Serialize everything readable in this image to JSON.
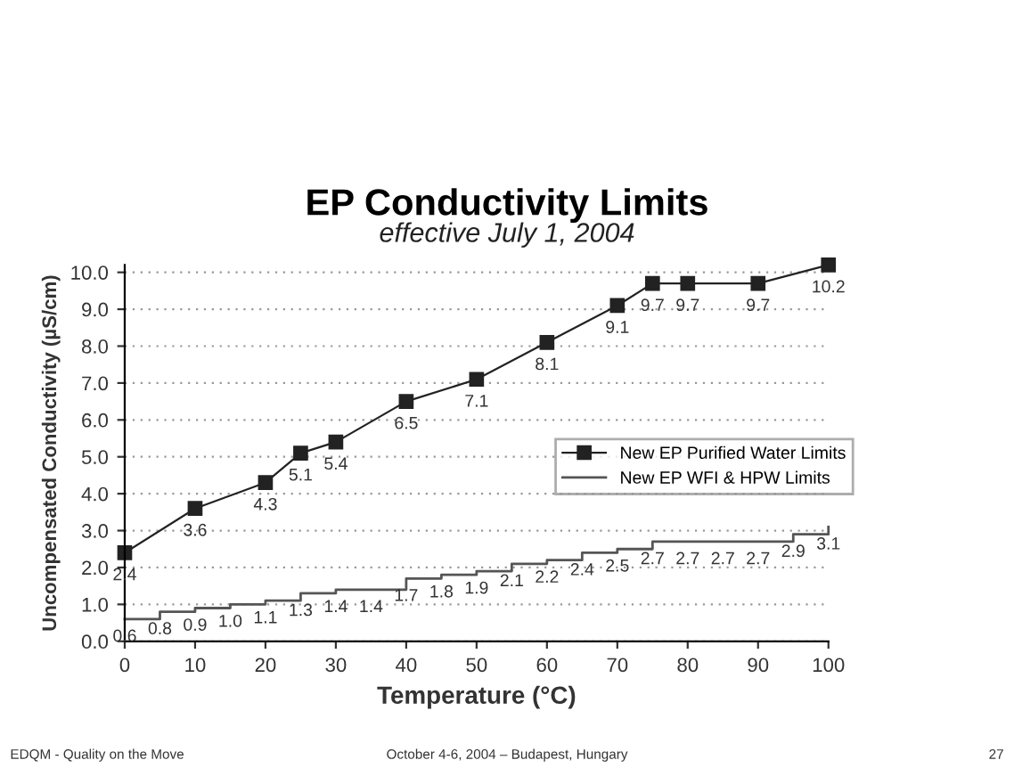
{
  "chart_data": {
    "type": "line",
    "title": "EP Conductivity Limits",
    "subtitle": "effective July 1, 2004",
    "xlabel": "Temperature (°C)",
    "ylabel": "Uncompensated Conductivity (µS/cm)",
    "xlim": [
      0,
      100
    ],
    "xticks": [
      0,
      10,
      20,
      30,
      40,
      50,
      60,
      70,
      80,
      90,
      100
    ],
    "ylim": [
      0,
      10.2
    ],
    "yticks": [
      {
        "value": 0,
        "label": "0.0"
      },
      {
        "value": 1,
        "label": "1.0"
      },
      {
        "value": 2,
        "label": "2.0"
      },
      {
        "value": 3,
        "label": "3.0"
      },
      {
        "value": 4,
        "label": "4.0"
      },
      {
        "value": 5,
        "label": "5.0"
      },
      {
        "value": 6,
        "label": "6.0"
      },
      {
        "value": 7,
        "label": "7.0"
      },
      {
        "value": 8,
        "label": "8.0"
      },
      {
        "value": 9,
        "label": "9.0"
      },
      {
        "value": 10,
        "label": "10.0"
      }
    ],
    "grid": "y",
    "legend": "right",
    "data_labels": true,
    "series": [
      {
        "name": "New EP Purified Water Limits",
        "marker": "square",
        "color": "#222222",
        "x": [
          0,
          10,
          20,
          25,
          30,
          40,
          50,
          60,
          70,
          75,
          80,
          90,
          100
        ],
        "values": [
          2.4,
          3.6,
          4.3,
          5.1,
          5.4,
          6.5,
          7.1,
          8.1,
          9.1,
          9.7,
          9.7,
          9.7,
          10.2
        ]
      },
      {
        "name": "New EP WFI & HPW Limits",
        "type": "step",
        "marker": "none",
        "color": "#555555",
        "x": [
          0,
          5,
          10,
          15,
          20,
          25,
          30,
          35,
          40,
          45,
          50,
          55,
          60,
          65,
          70,
          75,
          80,
          85,
          90,
          95,
          100
        ],
        "values": [
          0.6,
          0.8,
          0.9,
          1.0,
          1.1,
          1.3,
          1.4,
          1.4,
          1.7,
          1.8,
          1.9,
          2.1,
          2.2,
          2.4,
          2.5,
          2.7,
          2.7,
          2.7,
          2.7,
          2.9,
          3.1
        ],
        "value_labels": [
          "0.6",
          "0.8",
          "0.9",
          "1.0",
          "1.1",
          "1.3",
          "1.4",
          "1.4",
          "1.7",
          "1.8",
          "1.9",
          "2.1",
          "2.2",
          "2.4",
          "2.5",
          "2.7",
          "2.7",
          "2.7",
          "2.7",
          "2.9",
          "3.1"
        ]
      }
    ],
    "annotations": [
      "EDQM - Quality on the Move",
      "October 4-6, 2004 – Budapest, Hungary",
      "27"
    ]
  }
}
